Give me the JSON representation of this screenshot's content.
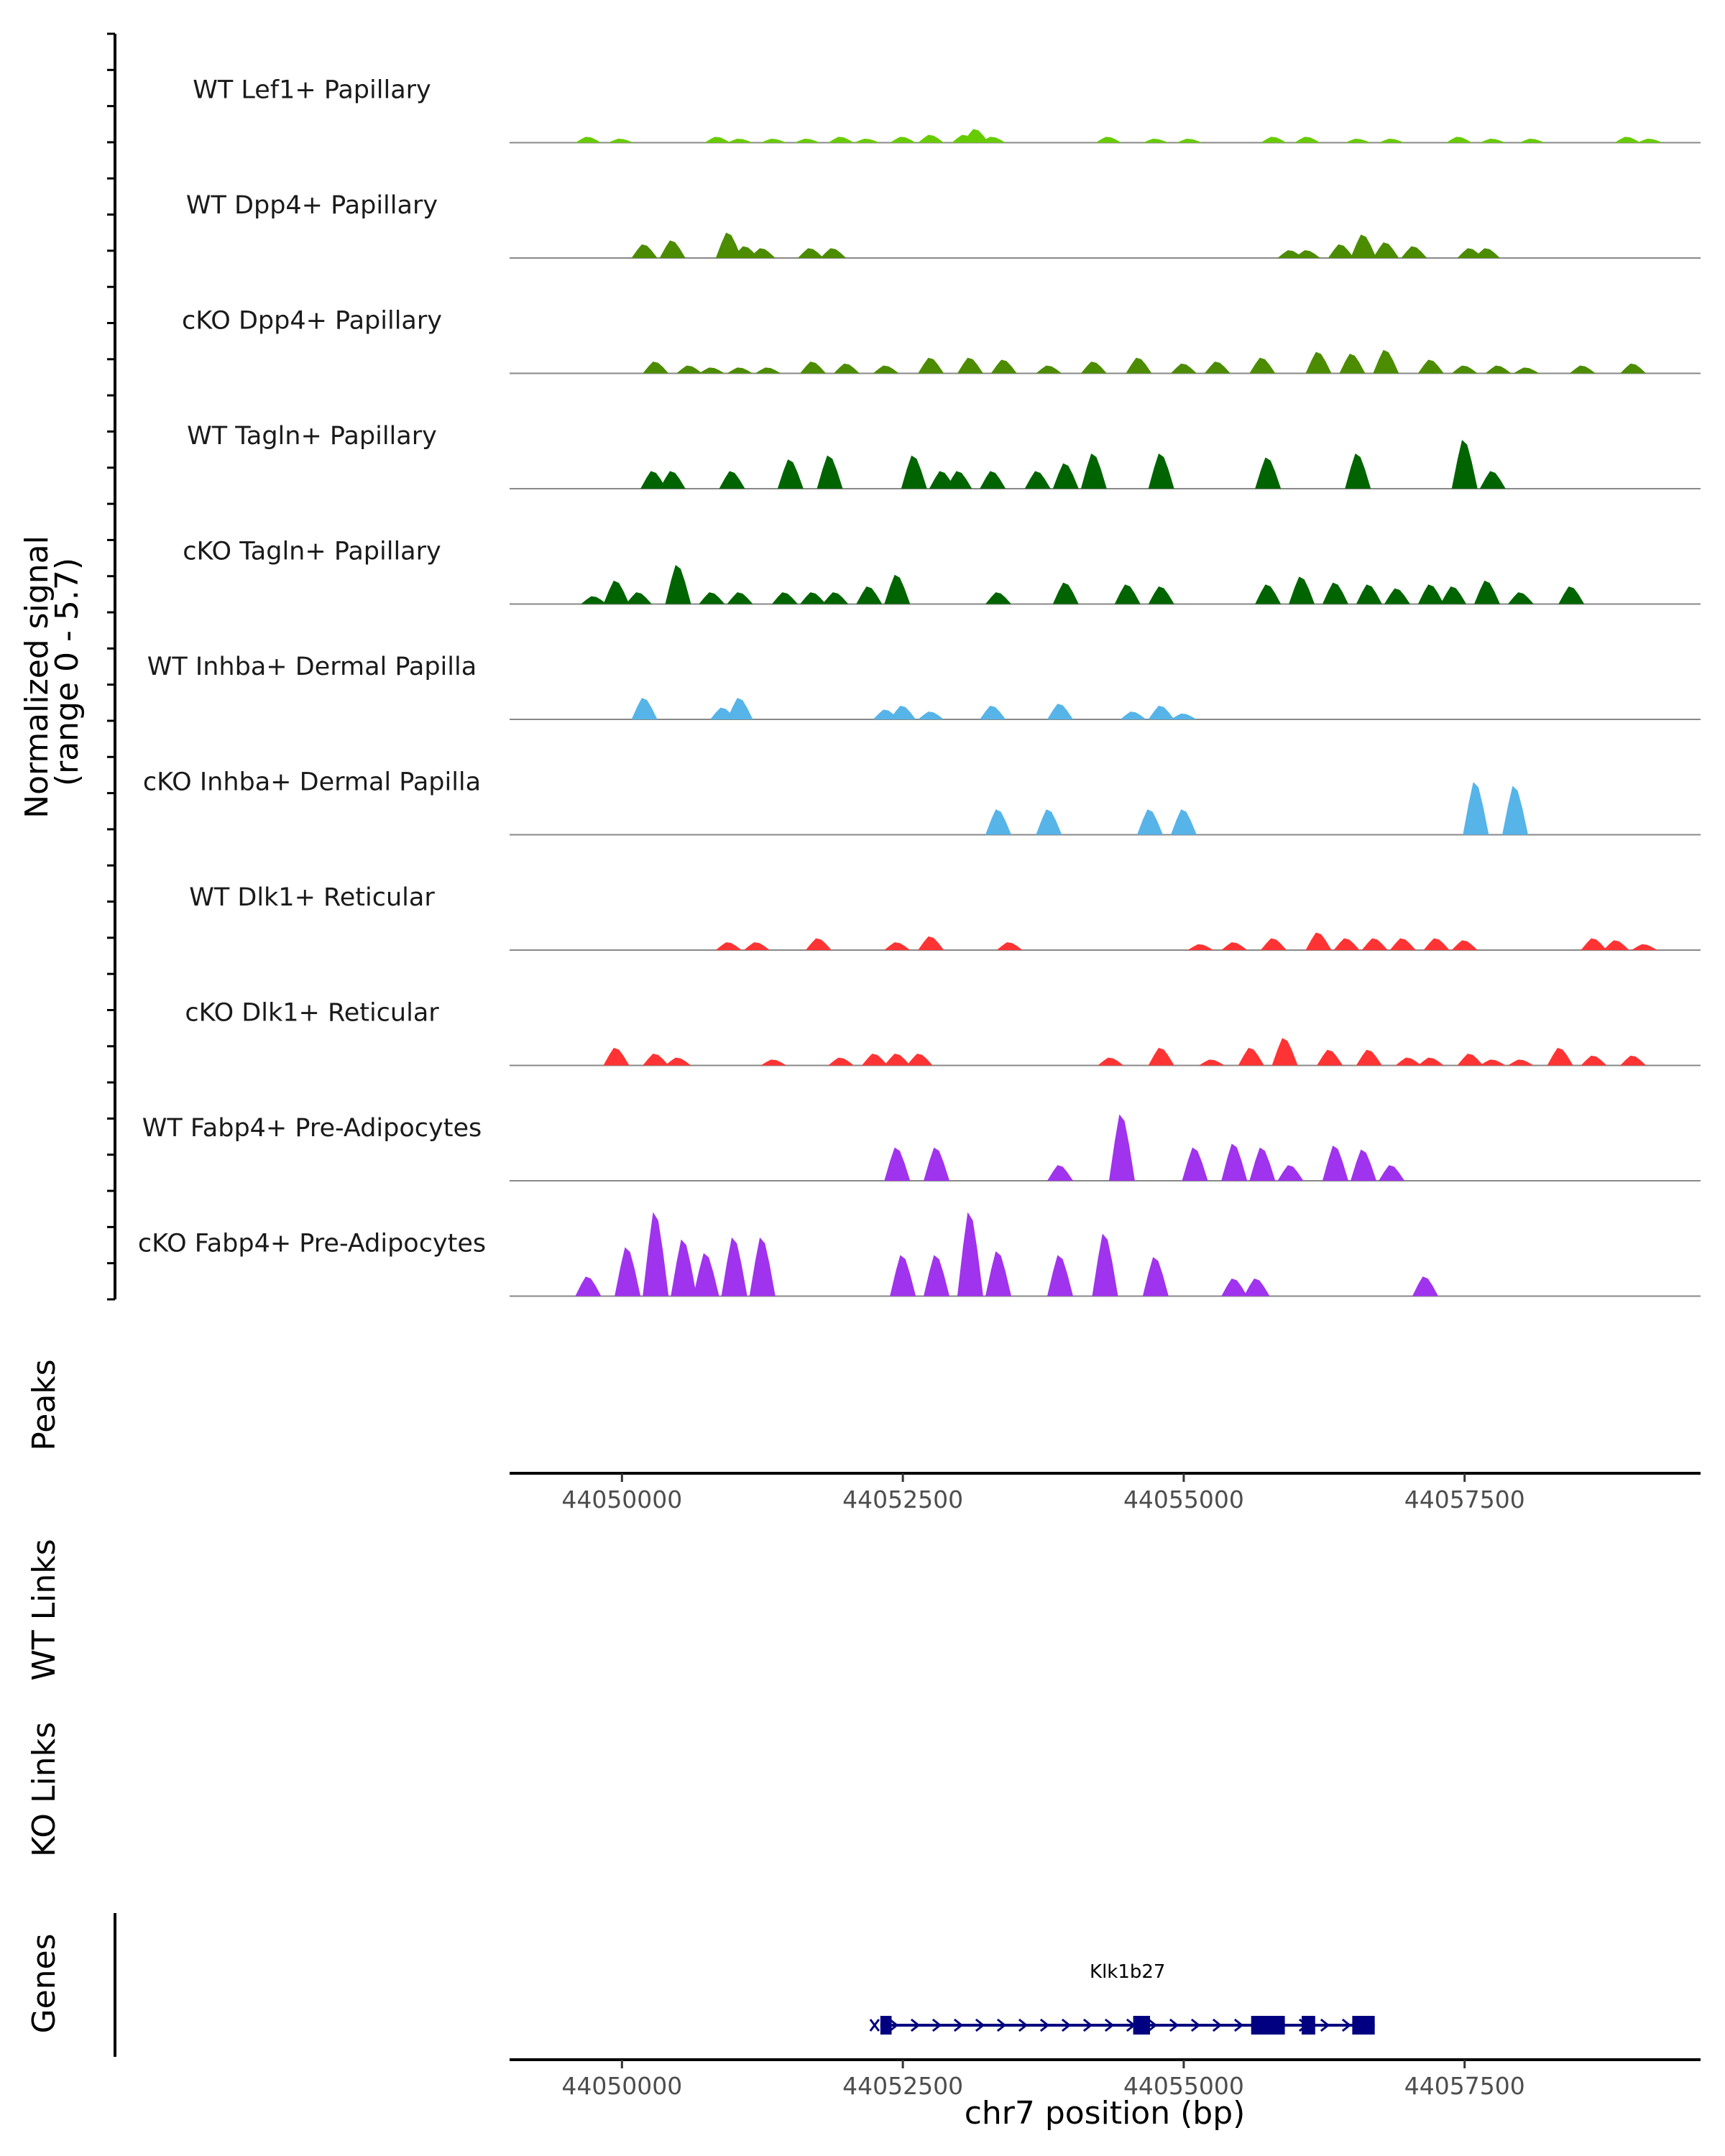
{
  "chart_data": {
    "type": "area",
    "title": "",
    "ylabel": "Normalized signal\n(range 0 - 5.7)",
    "xlabel": "chr7 position (bp)",
    "x_range": [
      44049000,
      44059600
    ],
    "x_ticks": [
      44050000,
      44052500,
      44055000,
      44057500
    ],
    "y_range": [
      0,
      5.7
    ],
    "tracks": [
      {
        "name": "WT Lef1+ Papillary",
        "color": "#66CC00",
        "peaks": [
          [
            44049700,
            0.3
          ],
          [
            44049990,
            0.2
          ],
          [
            44050850,
            0.3
          ],
          [
            44051050,
            0.2
          ],
          [
            44051350,
            0.2
          ],
          [
            44051650,
            0.2
          ],
          [
            44051950,
            0.3
          ],
          [
            44052180,
            0.2
          ],
          [
            44052500,
            0.3
          ],
          [
            44052750,
            0.4
          ],
          [
            44053050,
            0.4
          ],
          [
            44053150,
            0.7
          ],
          [
            44053300,
            0.3
          ],
          [
            44054330,
            0.3
          ],
          [
            44054750,
            0.2
          ],
          [
            44055050,
            0.2
          ],
          [
            44055800,
            0.3
          ],
          [
            44056100,
            0.3
          ],
          [
            44056550,
            0.2
          ],
          [
            44056850,
            0.2
          ],
          [
            44057450,
            0.3
          ],
          [
            44057750,
            0.2
          ],
          [
            44058100,
            0.2
          ],
          [
            44058950,
            0.3
          ],
          [
            44059150,
            0.2
          ]
        ]
      },
      {
        "name": "WT Dpp4+ Papillary",
        "color": "#4C8C00",
        "peaks": [
          [
            44050200,
            0.7
          ],
          [
            44050450,
            0.9
          ],
          [
            44050950,
            1.3
          ],
          [
            44051100,
            0.6
          ],
          [
            44051250,
            0.5
          ],
          [
            44051680,
            0.5
          ],
          [
            44051880,
            0.5
          ],
          [
            44055950,
            0.4
          ],
          [
            44056100,
            0.4
          ],
          [
            44056400,
            0.7
          ],
          [
            44056600,
            1.2
          ],
          [
            44056800,
            0.8
          ],
          [
            44057050,
            0.6
          ],
          [
            44057550,
            0.5
          ],
          [
            44057700,
            0.5
          ]
        ]
      },
      {
        "name": "cKO Dpp4+ Papillary",
        "color": "#4C8C00",
        "peaks": [
          [
            44050300,
            0.6
          ],
          [
            44050600,
            0.4
          ],
          [
            44050800,
            0.3
          ],
          [
            44051050,
            0.3
          ],
          [
            44051300,
            0.3
          ],
          [
            44051700,
            0.6
          ],
          [
            44052000,
            0.5
          ],
          [
            44052350,
            0.4
          ],
          [
            44052750,
            0.8
          ],
          [
            44053100,
            0.8
          ],
          [
            44053400,
            0.7
          ],
          [
            44053800,
            0.4
          ],
          [
            44054200,
            0.6
          ],
          [
            44054600,
            0.8
          ],
          [
            44055000,
            0.5
          ],
          [
            44055300,
            0.6
          ],
          [
            44055700,
            0.8
          ],
          [
            44056200,
            1.1
          ],
          [
            44056500,
            1.0
          ],
          [
            44056800,
            1.2
          ],
          [
            44057200,
            0.7
          ],
          [
            44057500,
            0.4
          ],
          [
            44057800,
            0.4
          ],
          [
            44058050,
            0.3
          ],
          [
            44058550,
            0.4
          ],
          [
            44059000,
            0.5
          ]
        ]
      },
      {
        "name": "WT Tagln+ Papillary",
        "color": "#006400",
        "peaks": [
          [
            44050280,
            0.9
          ],
          [
            44050450,
            0.9
          ],
          [
            44050980,
            0.9
          ],
          [
            44051500,
            1.5
          ],
          [
            44051850,
            1.7
          ],
          [
            44052600,
            1.7
          ],
          [
            44052850,
            0.9
          ],
          [
            44053000,
            0.9
          ],
          [
            44053300,
            0.9
          ],
          [
            44053700,
            0.9
          ],
          [
            44053950,
            1.3
          ],
          [
            44054200,
            1.8
          ],
          [
            44054800,
            1.8
          ],
          [
            44055750,
            1.6
          ],
          [
            44056550,
            1.8
          ],
          [
            44057500,
            2.5
          ],
          [
            44057750,
            0.9
          ]
        ]
      },
      {
        "name": "cKO Tagln+ Papillary",
        "color": "#006400",
        "peaks": [
          [
            44049750,
            0.4
          ],
          [
            44049950,
            1.2
          ],
          [
            44050150,
            0.6
          ],
          [
            44050500,
            2.0
          ],
          [
            44050800,
            0.6
          ],
          [
            44051050,
            0.6
          ],
          [
            44051450,
            0.6
          ],
          [
            44051700,
            0.6
          ],
          [
            44051900,
            0.6
          ],
          [
            44052200,
            0.9
          ],
          [
            44052450,
            1.5
          ],
          [
            44053350,
            0.6
          ],
          [
            44053950,
            1.1
          ],
          [
            44054500,
            1.0
          ],
          [
            44054800,
            0.9
          ],
          [
            44055750,
            1.0
          ],
          [
            44056050,
            1.4
          ],
          [
            44056350,
            1.1
          ],
          [
            44056650,
            1.0
          ],
          [
            44056900,
            0.8
          ],
          [
            44057200,
            1.0
          ],
          [
            44057400,
            0.9
          ],
          [
            44057700,
            1.2
          ],
          [
            44058000,
            0.6
          ],
          [
            44058450,
            0.9
          ]
        ]
      },
      {
        "name": "WT Inhba+ Dermal Papilla",
        "color": "#56B4E9",
        "peaks": [
          [
            44050200,
            1.1
          ],
          [
            44050900,
            0.6
          ],
          [
            44051050,
            1.1
          ],
          [
            44052350,
            0.5
          ],
          [
            44052500,
            0.7
          ],
          [
            44052750,
            0.4
          ],
          [
            44053300,
            0.7
          ],
          [
            44053900,
            0.8
          ],
          [
            44054550,
            0.4
          ],
          [
            44054800,
            0.7
          ],
          [
            44055000,
            0.3
          ]
        ]
      },
      {
        "name": "cKO Inhba+ Dermal Papilla",
        "color": "#56B4E9",
        "peaks": [
          [
            44053350,
            1.3
          ],
          [
            44053800,
            1.3
          ],
          [
            44054700,
            1.3
          ],
          [
            44055000,
            1.3
          ],
          [
            44057600,
            2.7
          ],
          [
            44057950,
            2.5
          ]
        ]
      },
      {
        "name": "WT Dlk1+ Reticular",
        "color": "#FF3333",
        "peaks": [
          [
            44050950,
            0.4
          ],
          [
            44051200,
            0.4
          ],
          [
            44051750,
            0.6
          ],
          [
            44052450,
            0.4
          ],
          [
            44052750,
            0.7
          ],
          [
            44053450,
            0.4
          ],
          [
            44055150,
            0.3
          ],
          [
            44055450,
            0.4
          ],
          [
            44055800,
            0.6
          ],
          [
            44056200,
            0.9
          ],
          [
            44056450,
            0.6
          ],
          [
            44056700,
            0.6
          ],
          [
            44056950,
            0.6
          ],
          [
            44057250,
            0.6
          ],
          [
            44057500,
            0.5
          ],
          [
            44058650,
            0.6
          ],
          [
            44058850,
            0.5
          ],
          [
            44059100,
            0.3
          ]
        ]
      },
      {
        "name": "cKO Dlk1+ Reticular",
        "color": "#FF3333",
        "peaks": [
          [
            44049950,
            0.9
          ],
          [
            44050300,
            0.6
          ],
          [
            44050500,
            0.4
          ],
          [
            44051350,
            0.3
          ],
          [
            44051950,
            0.4
          ],
          [
            44052250,
            0.6
          ],
          [
            44052450,
            0.6
          ],
          [
            44052650,
            0.6
          ],
          [
            44054350,
            0.4
          ],
          [
            44054800,
            0.9
          ],
          [
            44055250,
            0.3
          ],
          [
            44055600,
            0.9
          ],
          [
            44055900,
            1.4
          ],
          [
            44056300,
            0.8
          ],
          [
            44056650,
            0.8
          ],
          [
            44057000,
            0.4
          ],
          [
            44057200,
            0.4
          ],
          [
            44057550,
            0.6
          ],
          [
            44057750,
            0.3
          ],
          [
            44058000,
            0.3
          ],
          [
            44058350,
            0.9
          ],
          [
            44058650,
            0.5
          ],
          [
            44059000,
            0.5
          ]
        ]
      },
      {
        "name": "WT Fabp4+ Pre-Adipocytes",
        "color": "#A033EE",
        "peaks": [
          [
            44052450,
            1.7
          ],
          [
            44052800,
            1.7
          ],
          [
            44053900,
            0.8
          ],
          [
            44054450,
            3.4
          ],
          [
            44055100,
            1.7
          ],
          [
            44055450,
            1.9
          ],
          [
            44055700,
            1.7
          ],
          [
            44055950,
            0.8
          ],
          [
            44056350,
            1.8
          ],
          [
            44056600,
            1.6
          ],
          [
            44056850,
            0.8
          ]
        ]
      },
      {
        "name": "cKO Fabp4+ Pre-Adipocytes",
        "color": "#A033EE",
        "peaks": [
          [
            44049700,
            1.0
          ],
          [
            44050050,
            2.5
          ],
          [
            44050300,
            4.3
          ],
          [
            44050550,
            2.9
          ],
          [
            44050750,
            2.2
          ],
          [
            44051000,
            3.0
          ],
          [
            44051250,
            3.0
          ],
          [
            44052500,
            2.1
          ],
          [
            44052800,
            2.1
          ],
          [
            44053100,
            4.3
          ],
          [
            44053350,
            2.3
          ],
          [
            44053900,
            2.1
          ],
          [
            44054300,
            3.2
          ],
          [
            44054750,
            2.0
          ],
          [
            44055450,
            0.9
          ],
          [
            44055650,
            0.9
          ],
          [
            44057150,
            1.0
          ]
        ]
      }
    ],
    "peaks_track": {
      "label": "Peaks",
      "features": []
    },
    "links_tracks": [
      {
        "label": "WT Links",
        "links": []
      },
      {
        "label": "KO Links",
        "links": []
      }
    ],
    "gene_track": {
      "label": "Genes",
      "gene_name": "Klk1b27",
      "start": 44052300,
      "end": 44056700,
      "strand": "+",
      "color": "#000080",
      "exons": [
        [
          44052300,
          44052400
        ],
        [
          44054550,
          44054700
        ],
        [
          44055600,
          44055900
        ],
        [
          44056050,
          44056170
        ],
        [
          44056500,
          44056700
        ]
      ]
    }
  }
}
